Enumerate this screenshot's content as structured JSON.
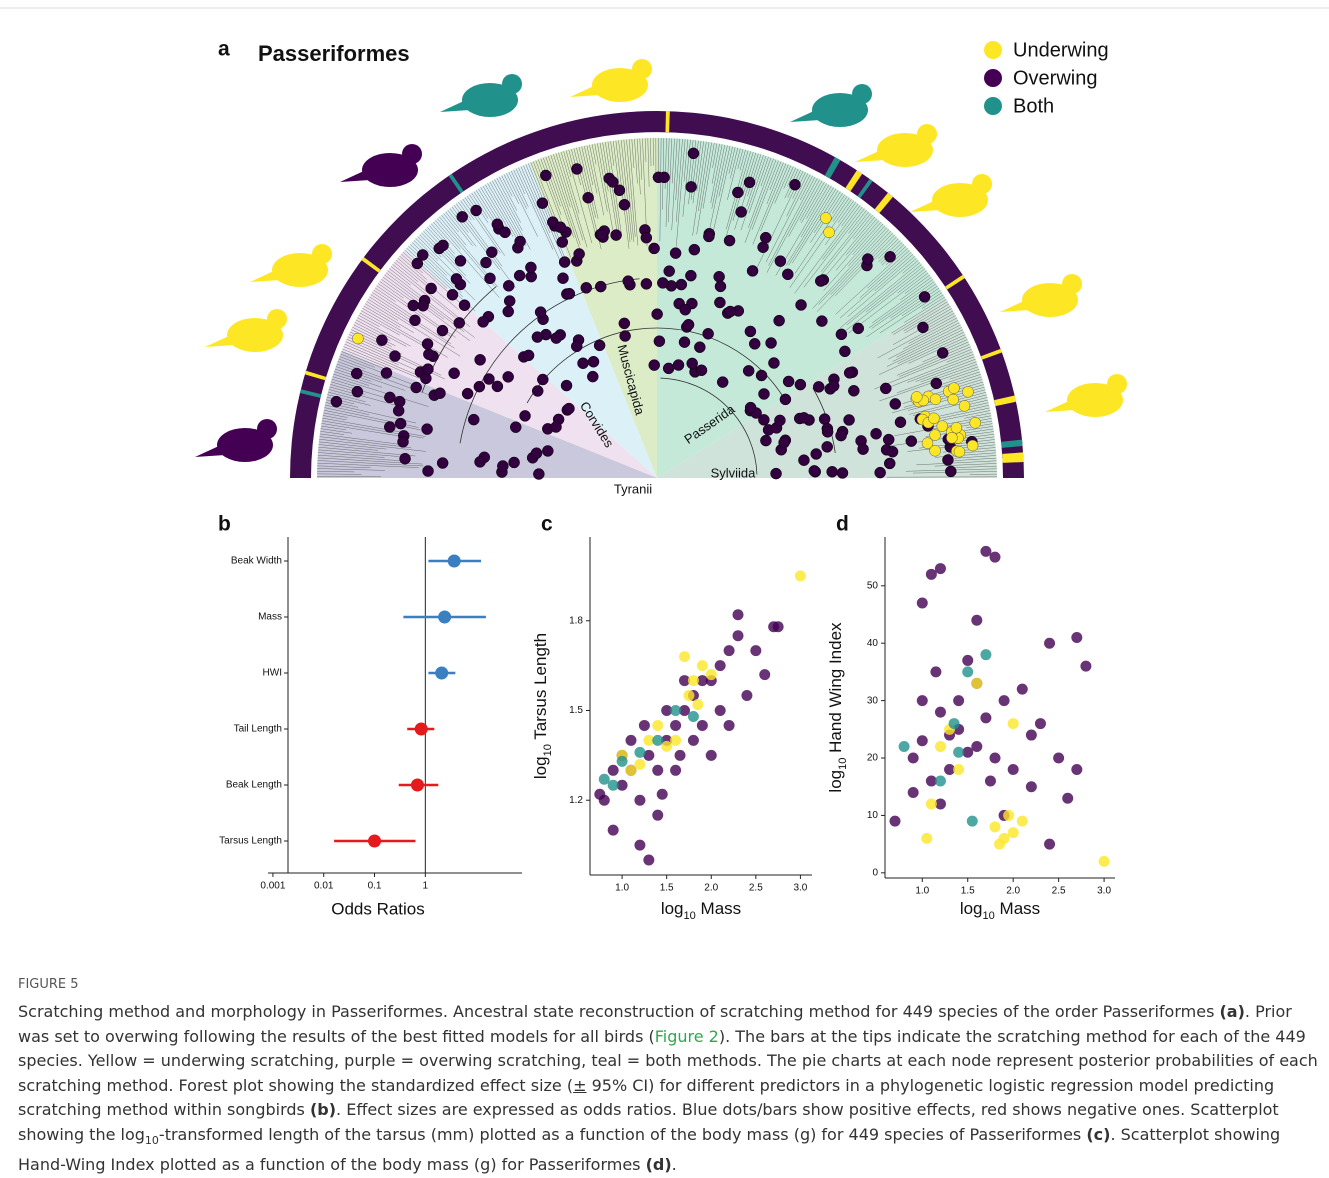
{
  "figure": {
    "label": "FIGURE 5",
    "caption": [
      {
        "text": "Scratching method and morphology in Passeriformes. Ancestral state reconstruction of scratching method for 449 species of the order Passeriformes ",
        "style": "plain"
      },
      {
        "text": "(a)",
        "style": "bold"
      },
      {
        "text": ". Prior was set to overwing following the results of the best fitted models for all birds (",
        "style": "plain"
      },
      {
        "text": "Figure 2",
        "style": "link"
      },
      {
        "text": "). The bars at the tips indicate the scratching method for each of the 449 species. Yellow = underwing scratching, purple = overwing scratching, teal = both methods. The pie charts at each node represent posterior probabilities of each scratching method. Forest plot showing the standardized effect size (",
        "style": "plain"
      },
      {
        "text": "±",
        "style": "underline"
      },
      {
        "text": " 95% CI) for different predictors in a phylogenetic logistic regression model predicting scratching method within songbirds ",
        "style": "plain"
      },
      {
        "text": "(b)",
        "style": "bold"
      },
      {
        "text": ". Effect sizes are expressed as odds ratios. Blue dots/bars show positive effects, red shows negative ones. Scatterplot showing the log",
        "style": "plain"
      },
      {
        "text": "10",
        "style": "sub"
      },
      {
        "text": "-transformed length of the tarsus (mm) plotted as a function of the body mass (g) for 449 species of Passeriformes ",
        "style": "plain"
      },
      {
        "text": "(c)",
        "style": "bold"
      },
      {
        "text": ". Scatterplot showing Hand-Wing Index plotted as a function of the body mass (g) for Passeriformes ",
        "style": "plain"
      },
      {
        "text": "(d)",
        "style": "bold"
      },
      {
        "text": ".",
        "style": "plain"
      }
    ]
  },
  "chart_data": [
    {
      "type": "tree",
      "panel": "a",
      "title": "Passeriformes",
      "clades": [
        "Tyranii",
        "Sylviida",
        "Passerida",
        "Muscicapida",
        "Corvides"
      ],
      "legend": [
        {
          "name": "Underwing",
          "color": "#fde725"
        },
        {
          "name": "Overwing",
          "color": "#440154"
        },
        {
          "name": "Both",
          "color": "#21918c"
        }
      ]
    },
    {
      "type": "forest",
      "panel": "b",
      "xlabel": "Odds Ratios",
      "log_x": true,
      "refline": 1,
      "categories": [
        "Beak Width",
        "Mass",
        "HWI",
        "Tail Length",
        "Beak Length",
        "Tarsus Length"
      ],
      "values": [
        3.7,
        2.4,
        2.1,
        0.83,
        0.7,
        0.1
      ],
      "lower": [
        1.15,
        0.37,
        1.15,
        0.44,
        0.3,
        0.016
      ],
      "upper": [
        12.5,
        15.6,
        3.9,
        1.5,
        1.8,
        0.64
      ],
      "colors": [
        "#3a7fc1",
        "#3a7fc1",
        "#3a7fc1",
        "#e41a1c",
        "#e41a1c",
        "#e41a1c"
      ],
      "xlim": [
        0.0008,
        80
      ],
      "xticks": [
        0.001,
        0.01,
        0.1,
        1
      ]
    },
    {
      "type": "scatter",
      "panel": "c",
      "xlabel": [
        "log",
        "10",
        " Mass"
      ],
      "ylabel": [
        "log",
        "10",
        " Tarsus Length"
      ],
      "xlim": [
        0.64,
        3.13
      ],
      "ylim": [
        0.95,
        2.08
      ],
      "xticks": [
        {
          "value": 1,
          "label": "1.0"
        },
        1.5,
        {
          "value": 2,
          "label": "2.0"
        },
        2.5,
        {
          "value": 3,
          "label": "3.0"
        }
      ],
      "yticks": [
        1.2,
        1.5,
        1.8
      ],
      "series": [
        {
          "color": "#440154",
          "x": [
            0.8,
            0.9,
            1.0,
            1.1,
            1.2,
            1.3,
            1.4,
            1.5,
            1.6,
            1.7,
            1.8,
            1.9,
            2.0,
            2.1,
            2.2,
            2.3,
            2.5,
            2.7,
            2.75,
            1.2,
            1.3,
            1.4,
            1.6,
            1.8,
            2.0,
            2.2,
            2.4,
            1.0,
            1.1,
            1.5,
            1.7,
            0.9,
            1.25,
            2.6,
            1.9,
            1.45,
            1.65,
            2.1,
            2.3,
            0.75
          ],
          "y": [
            1.2,
            1.1,
            1.25,
            1.3,
            1.2,
            1.35,
            1.3,
            1.4,
            1.45,
            1.5,
            1.55,
            1.6,
            1.6,
            1.65,
            1.7,
            1.75,
            1.7,
            1.78,
            1.78,
            1.05,
            1.0,
            1.15,
            1.3,
            1.4,
            1.35,
            1.45,
            1.55,
            1.35,
            1.4,
            1.5,
            1.6,
            1.3,
            1.45,
            1.62,
            1.45,
            1.22,
            1.35,
            1.5,
            1.82,
            1.22
          ]
        },
        {
          "color": "#fde725",
          "x": [
            1.8,
            1.9,
            1.75,
            2.0,
            1.85,
            1.0,
            1.1,
            1.3,
            1.4,
            1.5,
            1.6,
            3.0,
            1.7,
            1.2
          ],
          "y": [
            1.6,
            1.65,
            1.55,
            1.62,
            1.52,
            1.35,
            1.3,
            1.4,
            1.45,
            1.38,
            1.4,
            1.95,
            1.68,
            1.32
          ]
        },
        {
          "color": "#21918c",
          "x": [
            0.8,
            1.0,
            1.2,
            1.4,
            1.6,
            1.8,
            0.9
          ],
          "y": [
            1.27,
            1.33,
            1.36,
            1.4,
            1.5,
            1.48,
            1.25
          ]
        }
      ]
    },
    {
      "type": "scatter",
      "panel": "d",
      "xlabel": [
        "log",
        "10",
        " Mass"
      ],
      "ylabel": [
        "log",
        "10",
        " Hand Wing Index"
      ],
      "xlim": [
        0.59,
        3.12
      ],
      "ylim": [
        -0.9,
        58.5
      ],
      "xticks": [
        {
          "value": 1,
          "label": "1.0"
        },
        1.5,
        {
          "value": 2,
          "label": "2.0"
        },
        2.5,
        {
          "value": 3,
          "label": "3.0"
        }
      ],
      "yticks": [
        0,
        10,
        20,
        30,
        40,
        50
      ],
      "series": [
        {
          "color": "#440154",
          "x": [
            1.1,
            1.2,
            1.7,
            1.8,
            1.0,
            1.6,
            1.5,
            2.4,
            2.7,
            2.8,
            1.0,
            1.2,
            1.4,
            1.6,
            1.8,
            2.0,
            2.2,
            2.5,
            2.7,
            0.9,
            1.1,
            1.3,
            1.5,
            1.7,
            1.9,
            2.1,
            2.3,
            0.7,
            0.9,
            1.2,
            1.4,
            1.6,
            1.9,
            2.2,
            2.4,
            1.3,
            1.0,
            2.6,
            1.75,
            1.15
          ],
          "y": [
            52,
            53,
            56,
            55,
            47,
            44,
            37,
            40,
            41,
            36,
            30,
            28,
            25,
            22,
            20,
            18,
            24,
            20,
            18,
            20,
            16,
            18,
            21,
            27,
            30,
            32,
            26,
            9,
            14,
            12,
            30,
            33,
            10,
            15,
            5,
            24,
            23,
            13,
            16,
            35
          ]
        },
        {
          "color": "#fde725",
          "x": [
            1.8,
            1.9,
            2.0,
            1.85,
            2.1,
            1.95,
            1.05,
            1.2,
            1.3,
            1.6,
            2.0,
            3.0,
            1.1,
            1.4
          ],
          "y": [
            8,
            6,
            7,
            5,
            9,
            10,
            6,
            22,
            25,
            33,
            26,
            2,
            12,
            18
          ]
        },
        {
          "color": "#21918c",
          "x": [
            0.8,
            1.35,
            1.5,
            1.7,
            1.2,
            1.55,
            1.4
          ],
          "y": [
            22,
            26,
            35,
            38,
            16,
            9,
            21
          ]
        }
      ]
    }
  ]
}
